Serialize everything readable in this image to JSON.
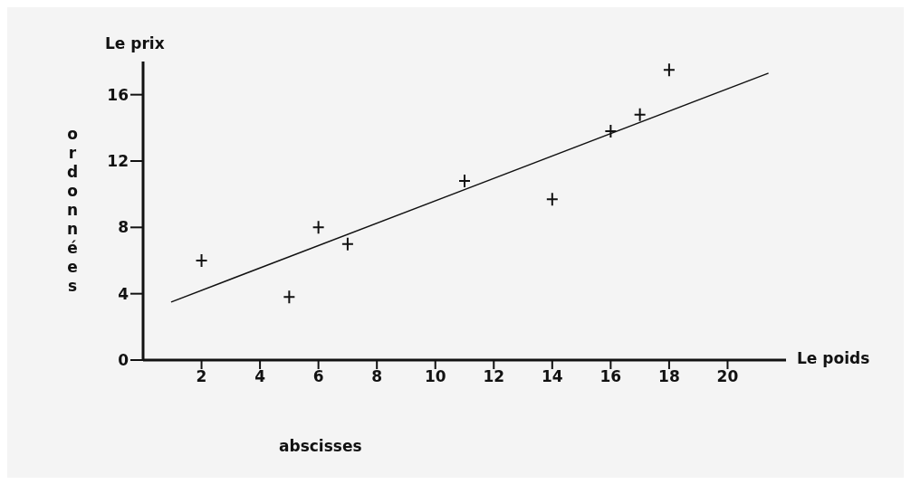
{
  "chart_data": {
    "type": "scatter",
    "xlabel": "Le poids",
    "ylabel": "Le prix",
    "annotations": [
      "ordonnées",
      "abscisses"
    ],
    "xlim": [
      0,
      22
    ],
    "ylim": [
      0,
      18
    ],
    "xticks": [
      2,
      4,
      6,
      8,
      10,
      12,
      14,
      16,
      18,
      20
    ],
    "yticks": [
      0,
      4,
      8,
      12,
      16
    ],
    "grid": false,
    "legend": false,
    "series": [
      {
        "color": "#111111",
        "marker": "cross",
        "x": [
          2,
          5,
          6,
          7,
          11,
          14,
          16,
          17,
          18
        ],
        "values": [
          6,
          3.8,
          8,
          7,
          10.8,
          9.7,
          13.8,
          14.8,
          17.5
        ]
      },
      {
        "type": "line",
        "color": "#111111",
        "marker": "none",
        "line_style": "solid",
        "x": [
          0.96,
          21.4
        ],
        "values": [
          3.5,
          17.3
        ]
      }
    ]
  }
}
